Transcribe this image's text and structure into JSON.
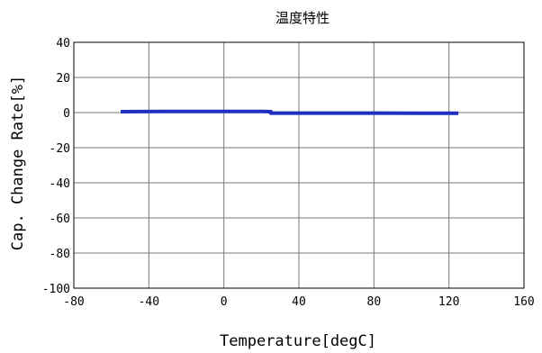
{
  "chart_data": {
    "type": "line",
    "title": "温度特性",
    "xlabel": "Temperature[degC]",
    "ylabel": "Cap. Change Rate[%]",
    "xlim": [
      -80,
      160
    ],
    "ylim": [
      -100,
      40
    ],
    "xticks": [
      -80,
      -40,
      0,
      40,
      80,
      120,
      160
    ],
    "yticks": [
      -100,
      -80,
      -60,
      -40,
      -20,
      0,
      20,
      40
    ],
    "grid": true,
    "series": [
      {
        "color": "#1f2fbf",
        "x": [
          -55,
          -30,
          0,
          20,
          25,
          25,
          50,
          85,
          105,
          125
        ],
        "y": [
          0.5,
          0.6,
          0.6,
          0.6,
          0.5,
          -0.3,
          -0.3,
          -0.3,
          -0.4,
          -0.4
        ]
      }
    ]
  }
}
